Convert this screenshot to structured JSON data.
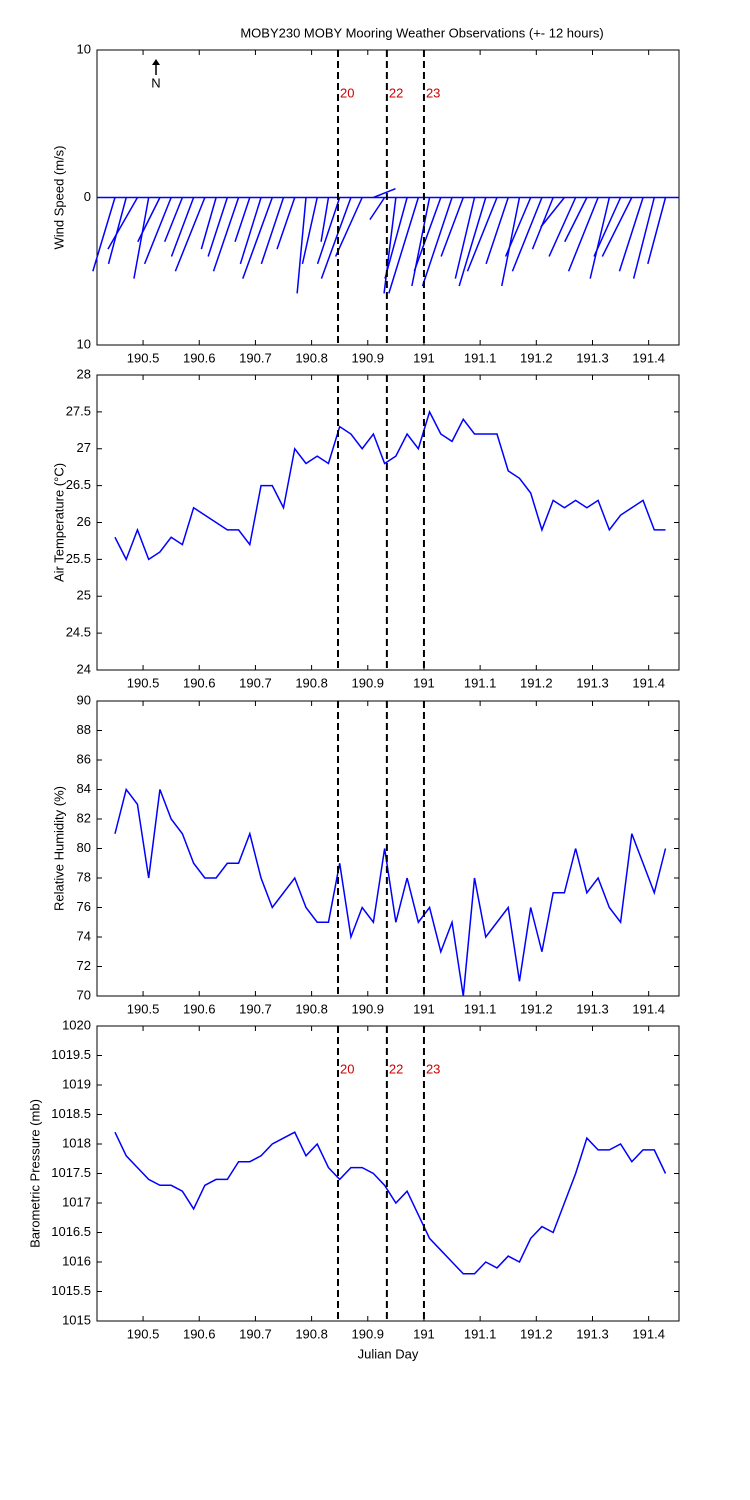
{
  "chart_data": [
    {
      "type": "stick",
      "title": "MOBY230 MOBY Mooring Weather Observations (+- 12 hours)",
      "y_label": "Wind Speed (m/s)",
      "annotation": "N",
      "xlim": [
        190.418,
        191.454
      ],
      "xticks": [
        190.5,
        190.6,
        190.7,
        190.8,
        190.9,
        191,
        191.1,
        191.2,
        191.3,
        191.4
      ],
      "ylim": [
        -10,
        10
      ],
      "yticks": [
        {
          "value": -10,
          "label": "10"
        },
        0,
        10
      ],
      "color": "#0000ff",
      "vlines": [
        {
          "x": 190.847,
          "label": "20"
        },
        {
          "x": 190.934,
          "label": "22"
        },
        {
          "x": 191.0,
          "label": "23"
        }
      ],
      "x": [
        190.45,
        190.47,
        190.49,
        190.51,
        190.53,
        190.55,
        190.57,
        190.59,
        190.61,
        190.63,
        190.65,
        190.67,
        190.69,
        190.71,
        190.73,
        190.75,
        190.77,
        190.79,
        190.81,
        190.83,
        190.85,
        190.87,
        190.89,
        190.91,
        190.93,
        190.95,
        190.97,
        190.99,
        191.01,
        191.03,
        191.05,
        191.07,
        191.09,
        191.11,
        191.13,
        191.15,
        191.17,
        191.19,
        191.21,
        191.23,
        191.25,
        191.27,
        191.29,
        191.31,
        191.33,
        191.35,
        191.37,
        191.39,
        191.41,
        191.43
      ],
      "u": [
        -1.5,
        -1.2,
        -2,
        -1,
        -1.5,
        -1.8,
        -1.2,
        -1.5,
        -2,
        -1,
        -1.3,
        -1.7,
        -1,
        -1.4,
        -2,
        -1.5,
        -1.2,
        -0.6,
        -1,
        -0.5,
        -1.5,
        -2,
        -1.8,
        1.5,
        -1,
        -0.8,
        -1.5,
        -2,
        -1.2,
        -1.8,
        -2,
        -1.5,
        -1.3,
        -1.8,
        -2,
        -1.5,
        -1.2,
        -1.7,
        -2,
        -1.4,
        -1.6,
        -1.8,
        -1.5,
        -2,
        -1.3,
        -1.8,
        -2,
        -1.6,
        -1.4,
        -1.2
      ],
      "v": [
        -5,
        -4.5,
        -3.5,
        -5.5,
        -3,
        -4.5,
        -3,
        -4,
        -5,
        -3.5,
        -4,
        -5,
        -3,
        -4.5,
        -5.5,
        -4.5,
        -3.5,
        -6.5,
        -4.5,
        -3,
        -4.5,
        -5.5,
        -4,
        0.6,
        -1.5,
        -6.5,
        -5.5,
        -6.5,
        -6,
        -5,
        -6,
        -4,
        -5.5,
        -6,
        -5,
        -4.5,
        -6,
        -4,
        -5,
        -3.5,
        -2,
        -4,
        -3,
        -5,
        -5.5,
        -4,
        -4,
        -5,
        -5.5,
        -4.5
      ]
    },
    {
      "type": "line",
      "y_label": "Air Temperature (°C)",
      "xlim": [
        190.418,
        191.454
      ],
      "xticks": [
        190.5,
        190.6,
        190.7,
        190.8,
        190.9,
        191,
        191.1,
        191.2,
        191.3,
        191.4
      ],
      "ylim": [
        24,
        28
      ],
      "yticks": [
        24,
        24.5,
        25,
        25.5,
        26,
        26.5,
        27,
        27.5,
        28
      ],
      "color": "#0000ff",
      "vlines": [
        190.847,
        190.934,
        191.0
      ],
      "x": [
        190.45,
        190.47,
        190.49,
        190.51,
        190.53,
        190.55,
        190.57,
        190.59,
        190.61,
        190.63,
        190.65,
        190.67,
        190.69,
        190.71,
        190.73,
        190.75,
        190.77,
        190.79,
        190.81,
        190.83,
        190.85,
        190.87,
        190.89,
        190.91,
        190.93,
        190.95,
        190.97,
        190.99,
        191.01,
        191.03,
        191.05,
        191.07,
        191.09,
        191.11,
        191.13,
        191.15,
        191.17,
        191.19,
        191.21,
        191.23,
        191.25,
        191.27,
        191.29,
        191.31,
        191.33,
        191.35,
        191.37,
        191.39,
        191.41,
        191.43
      ],
      "values": [
        25.8,
        25.5,
        25.9,
        25.5,
        25.6,
        25.8,
        25.7,
        26.2,
        26.1,
        26.0,
        25.9,
        25.9,
        25.7,
        26.5,
        26.5,
        26.2,
        27.0,
        26.8,
        26.9,
        26.8,
        27.3,
        27.2,
        27.0,
        27.2,
        26.8,
        26.9,
        27.2,
        27.0,
        27.5,
        27.2,
        27.1,
        27.4,
        27.2,
        27.2,
        27.2,
        26.7,
        26.6,
        26.4,
        25.9,
        26.3,
        26.2,
        26.3,
        26.2,
        26.3,
        25.9,
        26.1,
        26.2,
        26.3,
        25.9,
        25.9
      ]
    },
    {
      "type": "line",
      "y_label": "Relative Humidity (%)",
      "xlim": [
        190.418,
        191.454
      ],
      "xticks": [
        190.5,
        190.6,
        190.7,
        190.8,
        190.9,
        191,
        191.1,
        191.2,
        191.3,
        191.4
      ],
      "ylim": [
        70,
        90
      ],
      "yticks": [
        70,
        72,
        74,
        76,
        78,
        80,
        82,
        84,
        86,
        88,
        90
      ],
      "color": "#0000ff",
      "vlines": [
        190.847,
        190.934,
        191.0
      ],
      "x": [
        190.45,
        190.47,
        190.49,
        190.51,
        190.53,
        190.55,
        190.57,
        190.59,
        190.61,
        190.63,
        190.65,
        190.67,
        190.69,
        190.71,
        190.73,
        190.75,
        190.77,
        190.79,
        190.81,
        190.83,
        190.85,
        190.87,
        190.89,
        190.91,
        190.93,
        190.95,
        190.97,
        190.99,
        191.01,
        191.03,
        191.05,
        191.07,
        191.09,
        191.11,
        191.13,
        191.15,
        191.17,
        191.19,
        191.21,
        191.23,
        191.25,
        191.27,
        191.29,
        191.31,
        191.33,
        191.35,
        191.37,
        191.39,
        191.41,
        191.43
      ],
      "values": [
        81,
        84,
        83,
        78,
        84,
        82,
        81,
        79,
        78,
        78,
        79,
        79,
        81,
        78,
        76,
        77,
        78,
        76,
        75,
        75,
        79,
        74,
        76,
        75,
        80,
        75,
        78,
        75,
        76,
        73,
        75,
        70,
        78,
        74,
        75,
        76,
        71,
        76,
        73,
        77,
        77,
        80,
        77,
        78,
        76,
        75,
        81,
        79,
        77,
        80
      ]
    },
    {
      "type": "line",
      "y_label": "Barometric Pressure (mb)",
      "x_label": "Julian Day",
      "xlim": [
        190.418,
        191.454
      ],
      "xticks": [
        190.5,
        190.6,
        190.7,
        190.8,
        190.9,
        191,
        191.1,
        191.2,
        191.3,
        191.4
      ],
      "ylim": [
        1015,
        1020
      ],
      "yticks": [
        1015,
        1015.5,
        1016,
        1016.5,
        1017,
        1017.5,
        1018,
        1018.5,
        1019,
        1019.5,
        1020
      ],
      "color": "#0000ff",
      "vlines": [
        {
          "x": 190.847,
          "label": "20"
        },
        {
          "x": 190.934,
          "label": "22"
        },
        {
          "x": 191.0,
          "label": "23"
        }
      ],
      "x": [
        190.45,
        190.47,
        190.49,
        190.51,
        190.53,
        190.55,
        190.57,
        190.59,
        190.61,
        190.63,
        190.65,
        190.67,
        190.69,
        190.71,
        190.73,
        190.75,
        190.77,
        190.79,
        190.81,
        190.83,
        190.85,
        190.87,
        190.89,
        190.91,
        190.93,
        190.95,
        190.97,
        190.99,
        191.01,
        191.03,
        191.05,
        191.07,
        191.09,
        191.11,
        191.13,
        191.15,
        191.17,
        191.19,
        191.21,
        191.23,
        191.25,
        191.27,
        191.29,
        191.31,
        191.33,
        191.35,
        191.37,
        191.39,
        191.41,
        191.43
      ],
      "values": [
        1018.2,
        1017.8,
        1017.6,
        1017.4,
        1017.3,
        1017.3,
        1017.2,
        1016.9,
        1017.3,
        1017.4,
        1017.4,
        1017.7,
        1017.7,
        1017.8,
        1018.0,
        1018.1,
        1018.2,
        1017.8,
        1018.0,
        1017.6,
        1017.4,
        1017.6,
        1017.6,
        1017.5,
        1017.3,
        1017.0,
        1017.2,
        1016.8,
        1016.4,
        1016.2,
        1016.0,
        1015.8,
        1015.8,
        1016.0,
        1015.9,
        1016.1,
        1016.0,
        1016.4,
        1016.6,
        1016.5,
        1017.0,
        1017.5,
        1018.1,
        1017.9,
        1017.9,
        1018.0,
        1017.7,
        1017.9,
        1017.9,
        1017.5
      ]
    }
  ]
}
